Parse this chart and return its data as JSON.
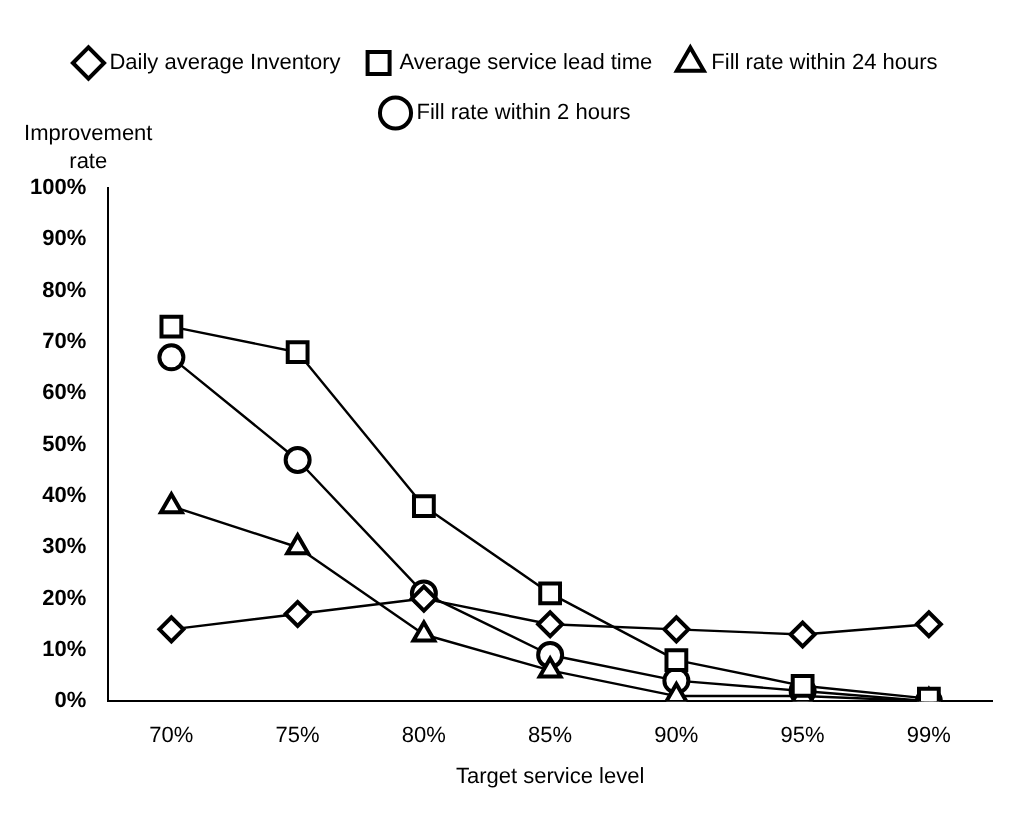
{
  "chart_data": {
    "type": "line",
    "xlabel": "Target service level",
    "ylabel": "Improvement rate",
    "categories": [
      "70%",
      "75%",
      "80%",
      "85%",
      "90%",
      "95%",
      "99%"
    ],
    "series": [
      {
        "name": "Daily average Inventory",
        "color": "#000000",
        "marker": "diamond",
        "values": [
          14,
          17,
          20,
          15,
          14,
          13,
          15
        ]
      },
      {
        "name": "Average service lead time",
        "color": "#000000",
        "marker": "square",
        "values": [
          73,
          68,
          38,
          21,
          8,
          3,
          0.5
        ]
      },
      {
        "name": "Fill rate within 24 hours",
        "color": "#000000",
        "marker": "triangle",
        "values": [
          38,
          30,
          13,
          6,
          1,
          1,
          0
        ]
      },
      {
        "name": "Fill rate within 2 hours",
        "color": "#000000",
        "marker": "circle",
        "values": [
          67,
          47,
          21,
          9,
          4,
          2,
          0
        ]
      }
    ],
    "ylim": [
      0,
      100
    ],
    "yticks": [
      {
        "value": 0,
        "label": "0%"
      },
      {
        "value": 10,
        "label": "10%"
      },
      {
        "value": 20,
        "label": "20%"
      },
      {
        "value": 30,
        "label": "30%"
      },
      {
        "value": 40,
        "label": "40%"
      },
      {
        "value": 50,
        "label": "50%"
      },
      {
        "value": 60,
        "label": "60%"
      },
      {
        "value": 70,
        "label": "70%"
      },
      {
        "value": 80,
        "label": "80%"
      },
      {
        "value": 90,
        "label": "90%"
      },
      {
        "value": 100,
        "label": "100%"
      }
    ],
    "grid": false,
    "legend": "top",
    "line_style": "solid"
  }
}
